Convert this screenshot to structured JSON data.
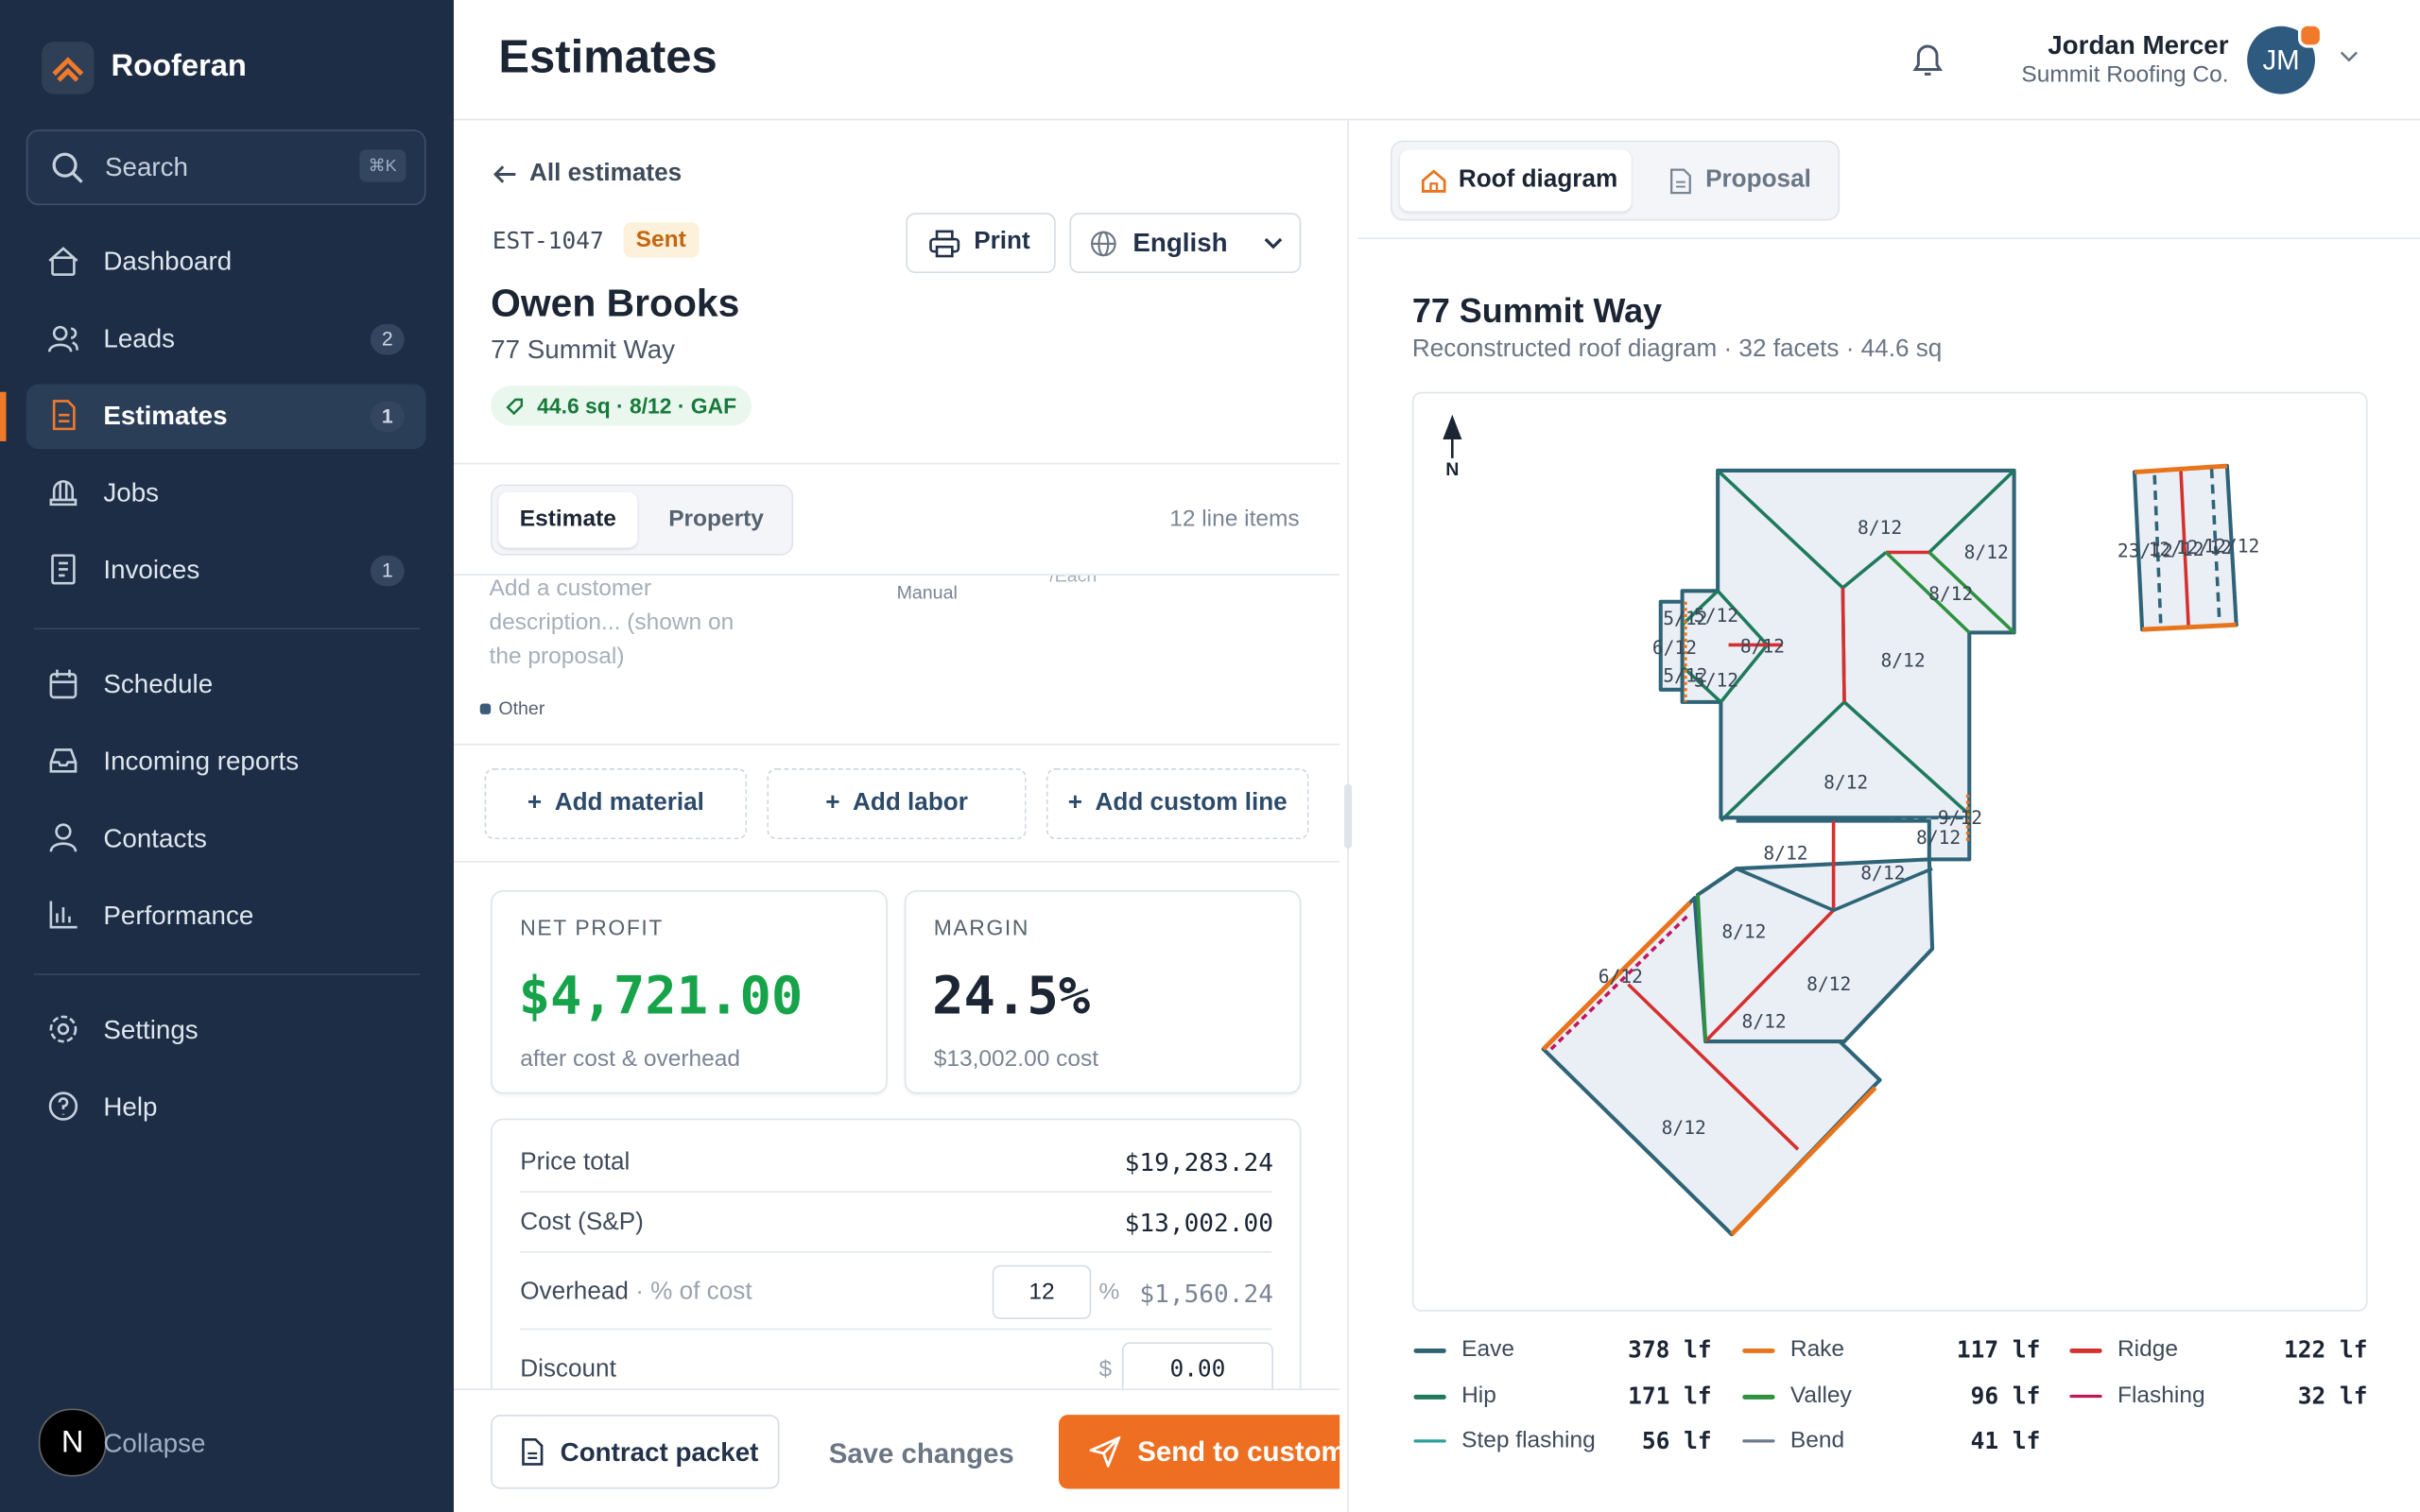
{
  "sidebar": {
    "brand": "Rooferan",
    "search": "Search",
    "shortcut": "⌘K",
    "nav": [
      {
        "label": "Dashboard"
      },
      {
        "label": "Leads",
        "badge": "2"
      },
      {
        "label": "Estimates",
        "badge": "1"
      },
      {
        "label": "Jobs"
      },
      {
        "label": "Invoices",
        "badge": "1"
      },
      {
        "label": "Schedule"
      },
      {
        "label": "Incoming reports"
      },
      {
        "label": "Contacts"
      },
      {
        "label": "Performance"
      },
      {
        "label": "Settings"
      },
      {
        "label": "Help"
      }
    ],
    "collapse": "Collapse",
    "avatar": "N"
  },
  "header": {
    "title": "Estimates",
    "user": "Jordan Mercer",
    "company": "Summit Roofing Co.",
    "initials": "JM"
  },
  "estimate": {
    "back": "All estimates",
    "id": "EST-1047",
    "status": "Sent",
    "print": "Print",
    "language": "English",
    "customer": "Owen Brooks",
    "address": "77 Summit Way",
    "tag": "44.6 sq · 8/12 · GAF",
    "tabs": [
      "Estimate",
      "Property"
    ],
    "line_items": "12 line items",
    "description": "Add a customer description... (shown on the proposal)",
    "manual": "Manual",
    "each": "/Each",
    "category": "Other",
    "add_buttons": [
      "Add material",
      "Add labor",
      "Add custom line"
    ],
    "net_profit": {
      "label": "NET PROFIT",
      "value": "$4,721.00",
      "note": "after cost & overhead"
    },
    "margin": {
      "label": "MARGIN",
      "value": "24.5%",
      "note": "$13,002.00 cost"
    },
    "summary": [
      {
        "label": "Price total",
        "value": "$19,283.24"
      },
      {
        "label": "Cost (S&P)",
        "value": "$13,002.00"
      }
    ],
    "overhead": {
      "label": "Overhead",
      "sub": "· % of cost",
      "input": "12",
      "unit": "%",
      "value": "$1,560.24"
    },
    "discount": {
      "label": "Discount",
      "unit": "$",
      "input": "0.00"
    },
    "footer": [
      "Contract packet",
      "Save changes",
      "Send to customer"
    ]
  },
  "diagram": {
    "tabs": [
      "Roof diagram",
      "Proposal"
    ],
    "title": "77 Summit Way",
    "subtitle": "Reconstructed roof diagram · 32 facets · 44.6 sq",
    "north": "N",
    "facets": [
      "8/12",
      "8/12",
      "8/12",
      "5/12",
      "5/12",
      "6/12",
      "8/12",
      "5/12",
      "5/12",
      "8/12",
      "8/12",
      "9/12",
      "8/12",
      "8/12",
      "8/12",
      "8/12",
      "8/12",
      "8/12",
      "6/12",
      "8/12",
      "23/12",
      "12/12",
      "12/12",
      "12/12"
    ],
    "legend": [
      {
        "name": "Eave",
        "value": "378 lf",
        "color": "#2f6478"
      },
      {
        "name": "Rake",
        "value": "117 lf",
        "color": "#e8741c"
      },
      {
        "name": "Ridge",
        "value": "122 lf",
        "color": "#d62f2f"
      },
      {
        "name": "Hip",
        "value": "171 lf",
        "color": "#1f7a5c"
      },
      {
        "name": "Valley",
        "value": "96 lf",
        "color": "#2e9140"
      },
      {
        "name": "Flashing",
        "value": "32 lf",
        "color": "#c2185b"
      },
      {
        "name": "Step flashing",
        "value": "56 lf",
        "color": "#2aa198"
      },
      {
        "name": "Bend",
        "value": "41 lf",
        "color": "#6b7b8c"
      }
    ]
  }
}
